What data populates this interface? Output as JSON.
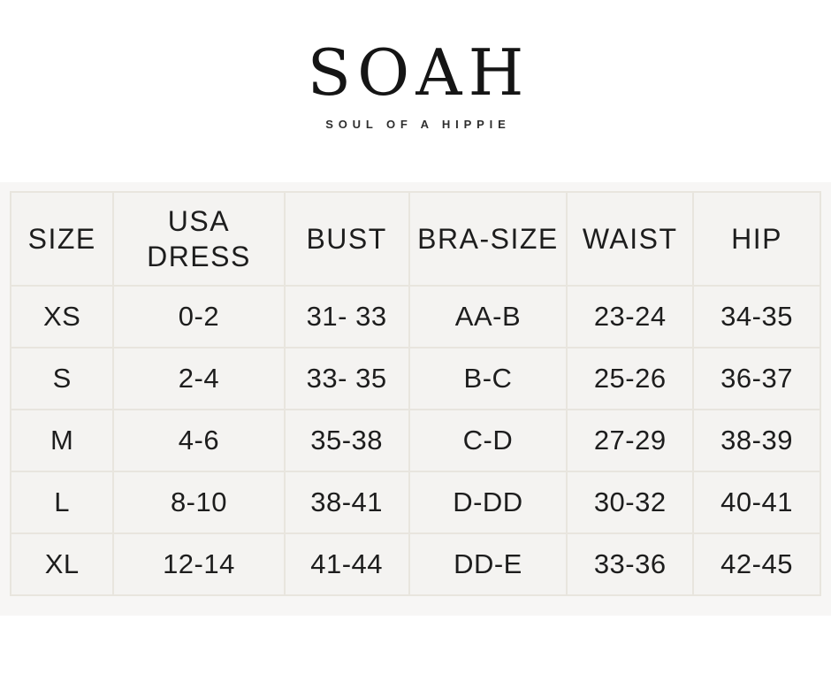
{
  "brand": {
    "name": "SOAH",
    "tagline": "SOUL OF A HIPPIE"
  },
  "size_chart": {
    "columns": [
      "SIZE",
      "USA DRESS",
      "BUST",
      "BRA-SIZE",
      "WAIST",
      "HIP"
    ],
    "rows": [
      [
        "XS",
        "0-2",
        "31- 33",
        "AA-B",
        "23-24",
        "34-35"
      ],
      [
        "S",
        "2-4",
        "33- 35",
        "B-C",
        "25-26",
        "36-37"
      ],
      [
        "M",
        "4-6",
        "35-38",
        "C-D",
        "27-29",
        "38-39"
      ],
      [
        "L",
        "8-10",
        "38-41",
        "D-DD",
        "30-32",
        "40-41"
      ],
      [
        "XL",
        "12-14",
        "41-44",
        "DD-E",
        "33-36",
        "42-45"
      ]
    ]
  },
  "colors": {
    "page_bg": "#ffffff",
    "section_bg": "#f7f6f5",
    "cell_bg": "#f4f3f1",
    "cell_border": "#e8e5de",
    "text": "#1d1d1d",
    "brand_text": "#151515"
  }
}
